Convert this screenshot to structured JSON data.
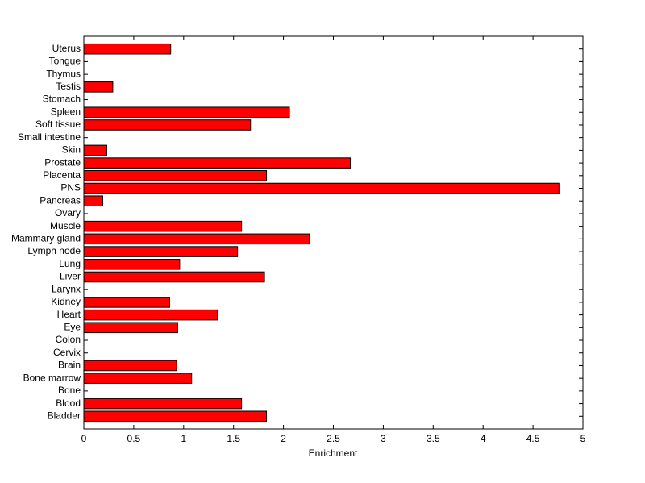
{
  "chart_data": {
    "type": "barh",
    "xlabel": "Enrichment",
    "categories": [
      "Bladder",
      "Blood",
      "Bone",
      "Bone marrow",
      "Brain",
      "Cervix",
      "Colon",
      "Eye",
      "Heart",
      "Kidney",
      "Larynx",
      "Liver",
      "Lung",
      "Lymph node",
      "Mammary gland",
      "Muscle",
      "Ovary",
      "Pancreas",
      "PNS",
      "Placenta",
      "Prostate",
      "Skin",
      "Small intestine",
      "Soft tissue",
      "Spleen",
      "Stomach",
      "Testis",
      "Thymus",
      "Tongue",
      "Uterus"
    ],
    "values": [
      1.83,
      1.58,
      0,
      1.08,
      0.93,
      0,
      0,
      0.94,
      1.34,
      0.86,
      0,
      1.81,
      0.96,
      1.54,
      2.26,
      1.58,
      0,
      0.19,
      4.76,
      1.83,
      2.67,
      0.23,
      0,
      1.67,
      2.06,
      0,
      0.29,
      0,
      0,
      0.87
    ],
    "color": "#ff0000",
    "xlim": [
      0,
      5
    ],
    "xticks": [
      0,
      0.5,
      1,
      1.5,
      2,
      2.5,
      3,
      3.5,
      4,
      4.5,
      5
    ]
  }
}
